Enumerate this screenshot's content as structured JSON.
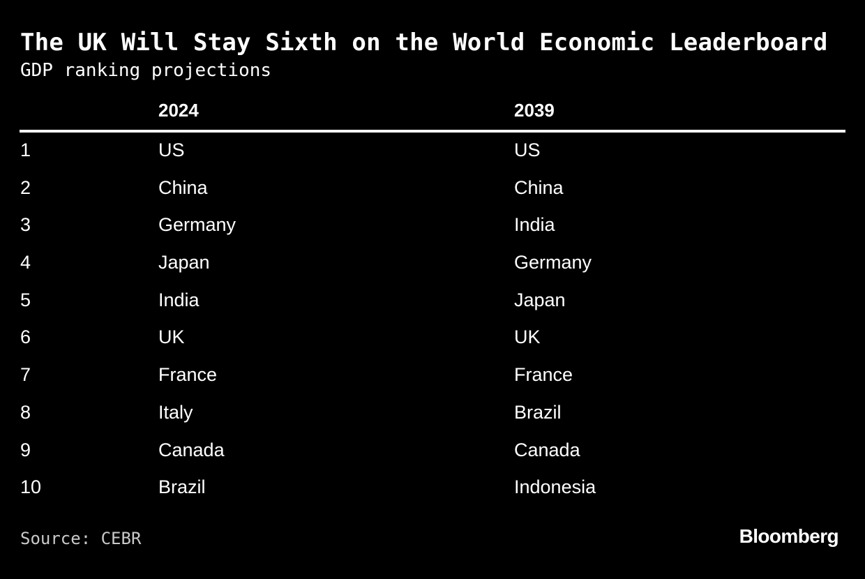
{
  "chart_data": {
    "type": "table",
    "title": "The UK Will Stay Sixth on the World Economic Leaderboard",
    "subtitle": "GDP ranking projections",
    "columns": [
      "",
      "2024",
      "2039"
    ],
    "rows": [
      [
        "1",
        "US",
        "US"
      ],
      [
        "2",
        "China",
        "China"
      ],
      [
        "3",
        "Germany",
        "India"
      ],
      [
        "4",
        "Japan",
        "Germany"
      ],
      [
        "5",
        "India",
        "Japan"
      ],
      [
        "6",
        "UK",
        "UK"
      ],
      [
        "7",
        "France",
        "France"
      ],
      [
        "8",
        "Italy",
        "Brazil"
      ],
      [
        "9",
        "Canada",
        "Canada"
      ],
      [
        "10",
        "Brazil",
        "Indonesia"
      ]
    ],
    "source": "Source: CEBR",
    "logo": "Bloomberg"
  },
  "colors": {
    "background": "#000000",
    "text": "#ffffff",
    "source_text": "#c9c9c9"
  }
}
